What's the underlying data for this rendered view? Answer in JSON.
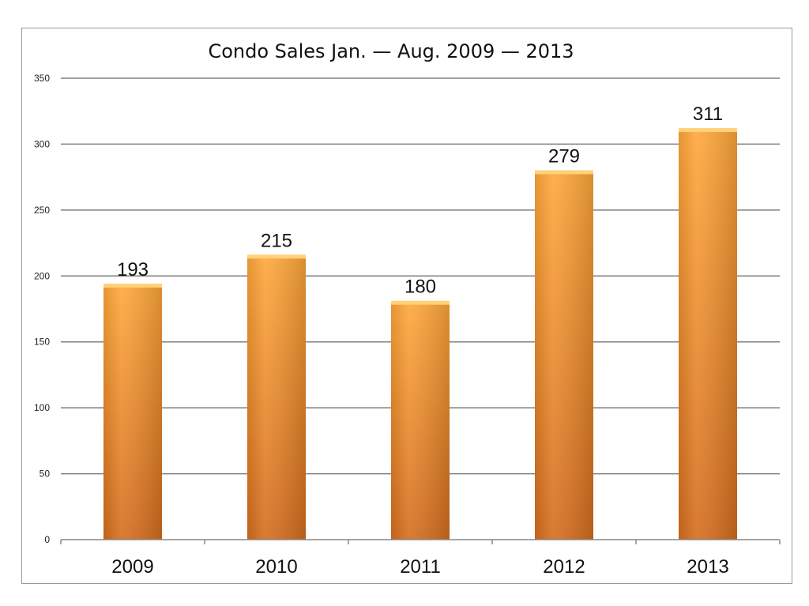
{
  "chart_data": {
    "type": "bar",
    "title": "Condo Sales Jan. — Aug. 2009 — 2013",
    "xlabel": "",
    "ylabel": "",
    "categories": [
      "2009",
      "2010",
      "2011",
      "2012",
      "2013"
    ],
    "values": [
      193,
      215,
      180,
      279,
      311
    ],
    "ylim": [
      0,
      350
    ],
    "yticks": [
      0,
      50,
      100,
      150,
      200,
      250,
      300,
      350
    ],
    "grid": true,
    "legend": "none",
    "data_labels": true,
    "colors": {
      "bar_top": "#ffa73a",
      "bar_bottom": "#d46d1e",
      "bar_cap": "#ffd27a",
      "gridline": "#7f7f7f",
      "frame": "#9a9a9a"
    }
  }
}
